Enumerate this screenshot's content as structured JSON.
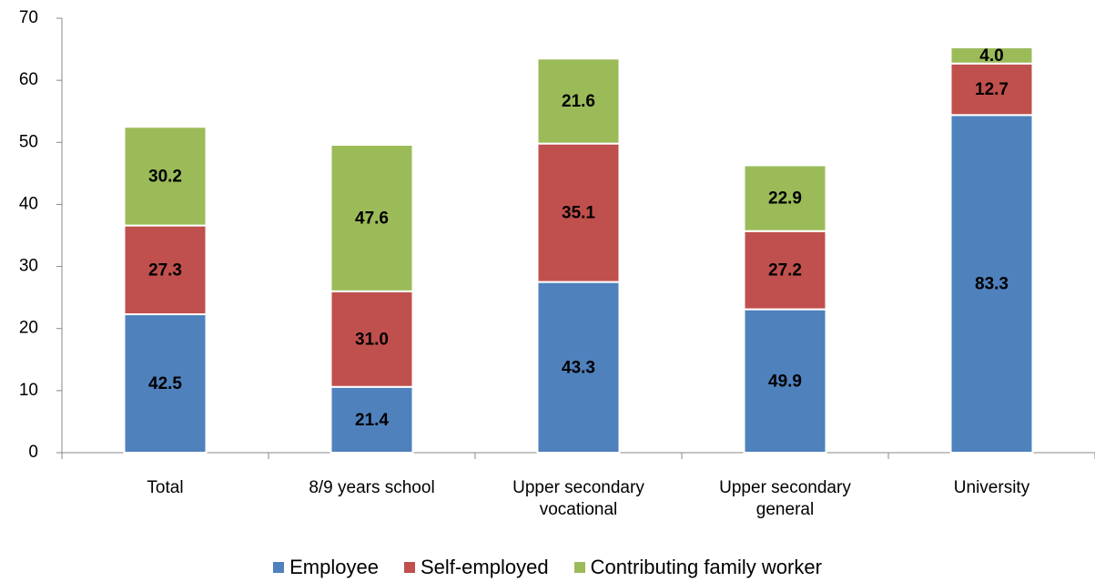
{
  "chart_data": {
    "type": "stacked_bar",
    "categories": [
      "Total",
      "8/9 years school",
      "Upper secondary vocational",
      "Upper secondary general",
      "University"
    ],
    "series": [
      {
        "name": "Employee",
        "color": "#4f81bd",
        "values": [
          22.3,
          10.6,
          27.5,
          23.1,
          54.4
        ],
        "value_labels": [
          "42.5",
          "21.4",
          "43.3",
          "49.9",
          "83.3"
        ]
      },
      {
        "name": "Self-employed",
        "color": "#c0504d",
        "values": [
          14.3,
          15.4,
          22.3,
          12.6,
          8.3
        ],
        "value_labels": [
          "27.3",
          "31.0",
          "35.1",
          "27.2",
          "12.7"
        ]
      },
      {
        "name": "Contributing family worker",
        "color": "#9bbb59",
        "values": [
          15.9,
          23.6,
          13.7,
          10.6,
          2.6
        ],
        "value_labels": [
          "30.2",
          "47.6",
          "21.6",
          "22.9",
          "4.0"
        ]
      }
    ],
    "ylim": [
      0,
      70
    ],
    "yticks": [
      0,
      10,
      20,
      30,
      40,
      50,
      60,
      70
    ],
    "legend": "bottom"
  }
}
